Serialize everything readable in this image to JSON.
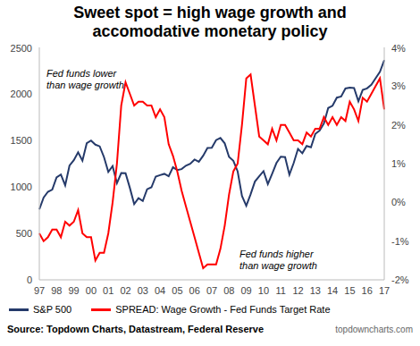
{
  "chart_data": {
    "type": "line",
    "title": "Sweet spot = high wage growth and accomodative monetary policy",
    "categories": [
      "97",
      null,
      null,
      null,
      "98",
      null,
      null,
      null,
      "99",
      null,
      null,
      null,
      "00",
      null,
      null,
      null,
      "01",
      null,
      null,
      null,
      "02",
      null,
      null,
      null,
      "03",
      null,
      null,
      null,
      "04",
      null,
      null,
      null,
      "05",
      null,
      null,
      null,
      "06",
      null,
      null,
      null,
      "07",
      null,
      null,
      null,
      "08",
      null,
      null,
      null,
      "09",
      null,
      null,
      null,
      "10",
      null,
      null,
      null,
      "11",
      null,
      null,
      null,
      "12",
      null,
      null,
      null,
      "13",
      null,
      null,
      null,
      "14",
      null,
      null,
      null,
      "15",
      null,
      null,
      null,
      "16",
      null,
      null,
      null,
      "17"
    ],
    "series": [
      {
        "name": "S&P 500",
        "color": "#253a6a",
        "values": [
          757,
          885,
          947,
          970,
          1101,
          1133,
          1017,
          1229,
          1286,
          1372,
          1282,
          1469,
          1498,
          1454,
          1436,
          1320,
          1160,
          1224,
          1040,
          1148,
          1147,
          989,
          815,
          879,
          848,
          974,
          995,
          1111,
          1126,
          1140,
          1114,
          1211,
          1180,
          1191,
          1228,
          1248,
          1294,
          1270,
          1335,
          1418,
          1420,
          1503,
          1526,
          1468,
          1322,
          1280,
          1166,
          903,
          797,
          919,
          1057,
          1115,
          1169,
          1030,
          1141,
          1257,
          1325,
          1320,
          1131,
          1257,
          1408,
          1362,
          1440,
          1426,
          1569,
          1606,
          1681,
          1848,
          1872,
          1960,
          1972,
          2058,
          2067,
          2063,
          1920,
          2043,
          2059,
          2098,
          2168,
          2238,
          2363
        ]
      },
      {
        "name": "SPREAD: Wage Growth - Fed Funds Target Rate",
        "color": "#ff0000",
        "axis": "y2",
        "values": [
          -0.8,
          -1.0,
          -0.9,
          -0.7,
          -0.7,
          -0.9,
          -0.5,
          -0.6,
          -0.5,
          -0.2,
          -0.8,
          -0.9,
          -0.9,
          -1.5,
          -1.3,
          -1.3,
          -0.8,
          0.0,
          1.0,
          2.5,
          3.1,
          2.8,
          2.5,
          2.6,
          2.6,
          2.5,
          2.5,
          2.2,
          2.4,
          2.2,
          1.5,
          1.2,
          0.8,
          0.3,
          -0.1,
          -0.5,
          -0.9,
          -1.3,
          -1.7,
          -1.6,
          -1.6,
          -1.6,
          -1.2,
          -0.6,
          0.2,
          0.8,
          1.0,
          2.0,
          3.2,
          3.3,
          2.5,
          1.7,
          1.6,
          1.5,
          1.9,
          1.6,
          2.0,
          2.0,
          1.8,
          1.6,
          1.6,
          1.5,
          1.8,
          1.7,
          1.9,
          1.9,
          2.2,
          2.0,
          2.2,
          2.0,
          2.2,
          2.1,
          2.6,
          2.4,
          2.1,
          2.7,
          2.6,
          2.8,
          3.0,
          3.2,
          2.4
        ]
      }
    ],
    "ylim": [
      0,
      2500
    ],
    "yticks": [
      0,
      500,
      1000,
      1500,
      2000,
      2500
    ],
    "y2lim": [
      -2,
      4
    ],
    "y2ticks": [
      {
        "value": -2,
        "label": "-2%"
      },
      {
        "value": -1,
        "label": "-1%"
      },
      {
        "value": 0,
        "label": "0%"
      },
      {
        "value": 1,
        "label": "1%"
      },
      {
        "value": 2,
        "label": "2%"
      },
      {
        "value": 3,
        "label": "3%"
      },
      {
        "value": 4,
        "label": "4%"
      }
    ],
    "grid": false,
    "legend": "bottom",
    "annotations": [
      [
        "Fed funds lower",
        "than wage growth"
      ],
      [
        "Fed funds higher",
        "than wage growth"
      ]
    ],
    "source": "Source: Topdown Charts, Datastream, Federal Reserve",
    "watermark": "topdowncharts.com"
  }
}
